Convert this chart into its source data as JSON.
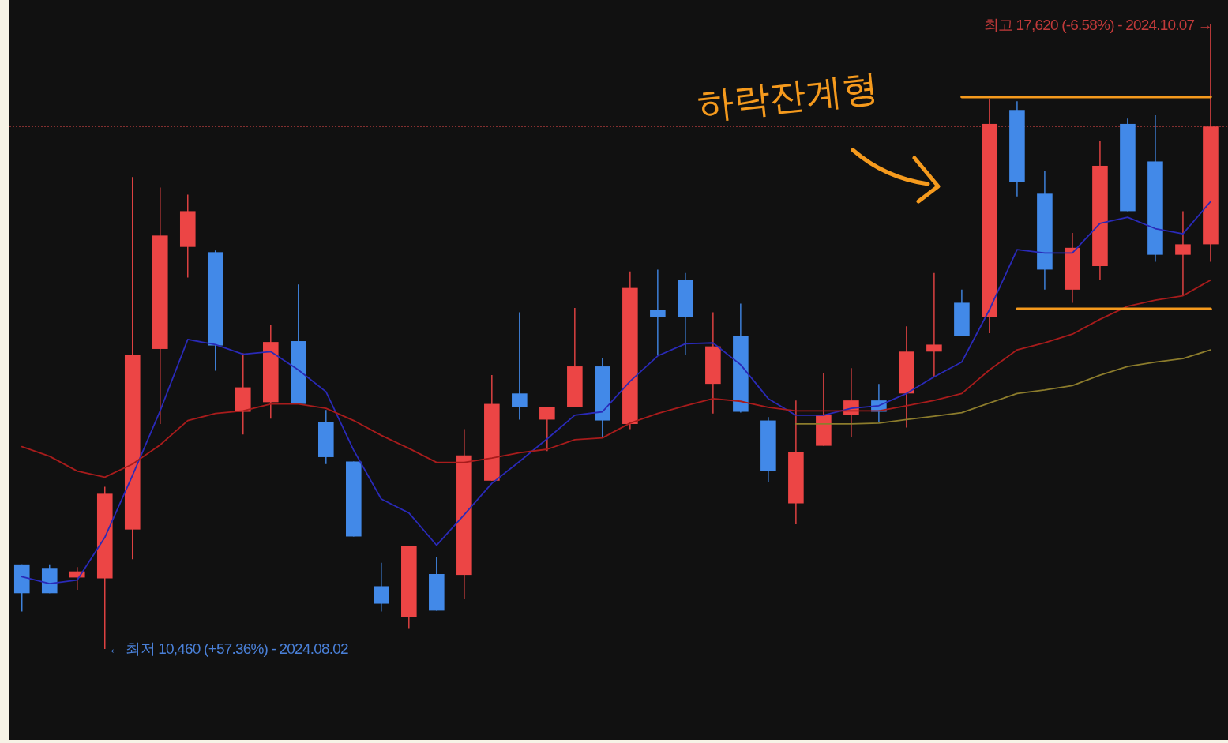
{
  "chart_data": {
    "type": "candlestick",
    "categories": [
      null,
      null,
      null,
      null,
      null,
      null,
      null,
      null,
      null,
      null,
      null,
      null,
      null,
      null,
      null,
      null,
      null,
      null,
      null,
      null,
      null,
      null,
      null,
      null,
      null,
      null,
      null,
      null,
      null,
      null,
      null,
      null,
      null,
      null,
      null,
      null,
      null,
      null,
      null,
      null,
      null,
      null,
      null,
      null
    ],
    "ohlc": [
      [
        11430,
        11430,
        10890,
        11100
      ],
      [
        11390,
        11430,
        11100,
        11100
      ],
      [
        11280,
        11400,
        11140,
        11350
      ],
      [
        11270,
        12320,
        10460,
        12240
      ],
      [
        11830,
        15870,
        11490,
        13830
      ],
      [
        13900,
        15750,
        13040,
        15200
      ],
      [
        15070,
        15670,
        14720,
        15480
      ],
      [
        15010,
        15030,
        13650,
        13940
      ],
      [
        13180,
        13850,
        12920,
        13460
      ],
      [
        13290,
        14180,
        13100,
        13980
      ],
      [
        13990,
        14640,
        13270,
        13270
      ],
      [
        13060,
        13200,
        12580,
        12660
      ],
      [
        12610,
        12610,
        11750,
        11750
      ],
      [
        11180,
        11450,
        10890,
        10980
      ],
      [
        10830,
        11640,
        10700,
        11640
      ],
      [
        11320,
        11520,
        10900,
        10900
      ],
      [
        11310,
        12980,
        11040,
        12680
      ],
      [
        12390,
        13600,
        12390,
        13270
      ],
      [
        13390,
        14320,
        13090,
        13230
      ],
      [
        13090,
        13230,
        12730,
        13230
      ],
      [
        13230,
        14370,
        13230,
        13700
      ],
      [
        13700,
        13790,
        12890,
        13080
      ],
      [
        13040,
        14790,
        12980,
        14600
      ],
      [
        14350,
        14810,
        13830,
        14270
      ],
      [
        14690,
        14770,
        13830,
        14270
      ],
      [
        13500,
        14320,
        13160,
        13930
      ],
      [
        14050,
        14420,
        13170,
        13180
      ],
      [
        13080,
        13120,
        12370,
        12500
      ],
      [
        12130,
        13310,
        11890,
        12720
      ],
      [
        12790,
        13620,
        12790,
        13140
      ],
      [
        13140,
        13680,
        12890,
        13310
      ],
      [
        13310,
        13500,
        13060,
        13180
      ],
      [
        13390,
        14160,
        13000,
        13870
      ],
      [
        13870,
        14770,
        13580,
        13950
      ],
      [
        14430,
        14580,
        14050,
        14050
      ],
      [
        14270,
        16760,
        14080,
        16480
      ],
      [
        16640,
        16740,
        15650,
        15810
      ],
      [
        15680,
        15940,
        14580,
        14810
      ],
      [
        14580,
        15230,
        14430,
        15060
      ],
      [
        14850,
        16290,
        14690,
        16000
      ],
      [
        16480,
        16540,
        15480,
        15480
      ],
      [
        16050,
        16580,
        14900,
        14980
      ],
      [
        14980,
        15480,
        14520,
        15100
      ],
      [
        15100,
        17620,
        14900,
        16450
      ]
    ],
    "colors": [
      "#4289e8",
      "#4289e8",
      "#ec4545",
      "#ec4545",
      "#ec4545",
      "#ec4545",
      "#ec4545",
      "#4289e8",
      "#ec4545",
      "#ec4545",
      "#4289e8",
      "#4289e8",
      "#4289e8",
      "#4289e8",
      "#ec4545",
      "#4289e8",
      "#ec4545",
      "#ec4545",
      "#4289e8",
      "#ec4545",
      "#ec4545",
      "#4289e8",
      "#ec4545",
      "#4289e8",
      "#4289e8",
      "#ec4545",
      "#4289e8",
      "#4289e8",
      "#ec4545",
      "#ec4545",
      "#ec4545",
      "#4289e8",
      "#ec4545",
      "#ec4545",
      "#4289e8",
      "#ec4545",
      "#4289e8",
      "#4289e8",
      "#ec4545",
      "#ec4545",
      "#4289e8",
      "#4289e8",
      "#ec4545",
      "#ec4545"
    ],
    "series": [
      {
        "type": "line",
        "color": "#2a2ab8",
        "values": [
          11290,
          11210,
          11250,
          11740,
          12450,
          13190,
          14010,
          13950,
          13840,
          13870,
          13660,
          13410,
          12740,
          12180,
          12020,
          11650,
          12000,
          12360,
          12610,
          12870,
          13140,
          13180,
          13530,
          13820,
          13960,
          13970,
          13720,
          13330,
          13140,
          13140,
          13220,
          13250,
          13390,
          13580,
          13750,
          14350,
          15040,
          15000,
          15000,
          15340,
          15410,
          15280,
          15220,
          15590
        ]
      },
      {
        "type": "line",
        "color": "#a81c1c",
        "values": [
          12780,
          12670,
          12500,
          12430,
          12580,
          12800,
          13080,
          13160,
          13190,
          13270,
          13270,
          13220,
          13080,
          12910,
          12760,
          12600,
          12600,
          12650,
          12710,
          12750,
          12860,
          12880,
          13050,
          13160,
          13250,
          13330,
          13300,
          13230,
          13190,
          13190,
          13190,
          13190,
          13250,
          13310,
          13390,
          13660,
          13890,
          13970,
          14070,
          14240,
          14390,
          14460,
          14510,
          14690
        ]
      },
      {
        "type": "line",
        "color": "#8c7c2c",
        "values": [
          null,
          null,
          null,
          null,
          null,
          null,
          null,
          null,
          null,
          null,
          null,
          null,
          null,
          null,
          null,
          null,
          null,
          null,
          null,
          null,
          null,
          null,
          null,
          null,
          null,
          null,
          null,
          null,
          13040,
          13040,
          13040,
          13050,
          13090,
          13130,
          13170,
          13280,
          13390,
          13430,
          13480,
          13600,
          13700,
          13750,
          13790,
          13890
        ]
      },
      {
        "type": "line",
        "color": "#f59a1d",
        "values": [
          null,
          null,
          null,
          null,
          null,
          null,
          null,
          null,
          null,
          null,
          null,
          null,
          null,
          null,
          null,
          null,
          null,
          null,
          null,
          null,
          null,
          null,
          null,
          null,
          null,
          null,
          null,
          null,
          null,
          null,
          null,
          null,
          null,
          null,
          16790,
          16790,
          16790,
          16790,
          16790,
          16790,
          16790,
          16790,
          16790,
          16790
        ]
      },
      {
        "type": "line",
        "color": "#f59a1d",
        "values": [
          null,
          null,
          null,
          null,
          null,
          null,
          null,
          null,
          null,
          null,
          null,
          null,
          null,
          null,
          null,
          null,
          null,
          null,
          null,
          null,
          null,
          null,
          null,
          null,
          null,
          null,
          null,
          null,
          null,
          null,
          null,
          null,
          null,
          null,
          null,
          null,
          14360,
          14360,
          14360,
          14360,
          14360,
          14360,
          14360,
          14360
        ]
      }
    ],
    "ref_lines": [
      {
        "axis": "y",
        "value": 16450,
        "color": "#a83a3a",
        "line_style": "dotted"
      }
    ],
    "annotations": [
      "하락잔계형",
      "← 최저 10,460 (+57.36%) - 2024.08.02",
      "최고 17,620 (-6.58%) - 2024.10.07 →"
    ]
  }
}
